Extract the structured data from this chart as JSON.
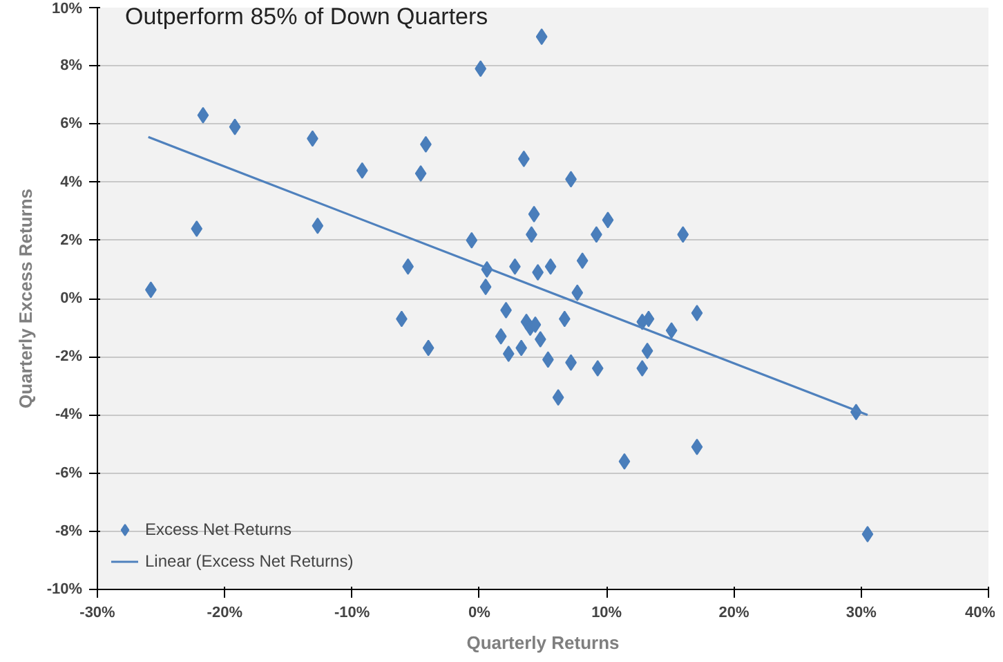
{
  "chart_data": {
    "type": "scatter",
    "title": "Outperform 85% of Down Quarters",
    "xlabel": "Quarterly Returns",
    "ylabel": "Quarterly Excess Returns",
    "xlim": [
      -30,
      40
    ],
    "ylim": [
      -10,
      10
    ],
    "xticks": [
      {
        "value": -30,
        "label": "-30%"
      },
      {
        "value": -20,
        "label": "-20%"
      },
      {
        "value": -10,
        "label": "-10%"
      },
      {
        "value": 0,
        "label": "0%"
      },
      {
        "value": 10,
        "label": "10%"
      },
      {
        "value": 20,
        "label": "20%"
      },
      {
        "value": 30,
        "label": "30%"
      },
      {
        "value": 40,
        "label": "40%"
      }
    ],
    "yticks": [
      {
        "value": -10,
        "label": "-10%"
      },
      {
        "value": -8,
        "label": "-8%"
      },
      {
        "value": -6,
        "label": "-6%"
      },
      {
        "value": -4,
        "label": "-4%"
      },
      {
        "value": -2,
        "label": "-2%"
      },
      {
        "value": 0,
        "label": "0%"
      },
      {
        "value": 2,
        "label": "2%"
      },
      {
        "value": 4,
        "label": "4%"
      },
      {
        "value": 6,
        "label": "6%"
      },
      {
        "value": 8,
        "label": "8%"
      },
      {
        "value": 10,
        "label": "10%"
      }
    ],
    "grid": "y",
    "legend": "bottom left",
    "series": [
      {
        "name": "Excess Net Returns",
        "marker": "diamond",
        "color": "#4a7ebb",
        "x": [
          -25.8,
          -21.7,
          -22.2,
          -19.2,
          -13.1,
          -12.7,
          -9.2,
          -4.6,
          -4.2,
          -5.6,
          -0.6,
          0.1,
          0.6,
          0.5,
          4.9,
          3.5,
          7.2,
          4.3,
          4.1,
          9.2,
          10.1,
          16.0,
          2.8,
          4.6,
          5.6,
          8.1,
          7.7,
          -6.1,
          -4.0,
          2.1,
          1.7,
          2.3,
          3.3,
          3.7,
          4.0,
          4.4,
          4.8,
          5.4,
          6.2,
          6.7,
          7.2,
          9.3,
          11.4,
          12.8,
          13.3,
          12.8,
          13.2,
          15.1,
          17.1,
          17.1,
          29.6,
          30.5
        ],
        "values": [
          0.3,
          6.3,
          2.4,
          5.9,
          5.5,
          2.5,
          4.4,
          4.3,
          5.3,
          1.1,
          2.0,
          7.9,
          1.0,
          0.4,
          9.0,
          4.8,
          4.1,
          2.9,
          2.2,
          2.2,
          2.7,
          2.2,
          1.1,
          0.9,
          1.1,
          1.3,
          0.2,
          -0.7,
          -1.7,
          -0.4,
          -1.3,
          -1.9,
          -1.7,
          -0.8,
          -1.0,
          -0.9,
          -1.4,
          -2.1,
          -3.4,
          -0.7,
          -2.2,
          -2.4,
          -5.6,
          -0.8,
          -0.7,
          -2.4,
          -1.8,
          -1.1,
          -0.5,
          -5.1,
          -3.9,
          -8.1
        ]
      },
      {
        "name": "Linear (Excess Net Returns)",
        "type": "line",
        "color": "#4f81bd",
        "x": [
          -26,
          30.5
        ],
        "values": [
          5.55,
          -4.0
        ]
      }
    ]
  }
}
